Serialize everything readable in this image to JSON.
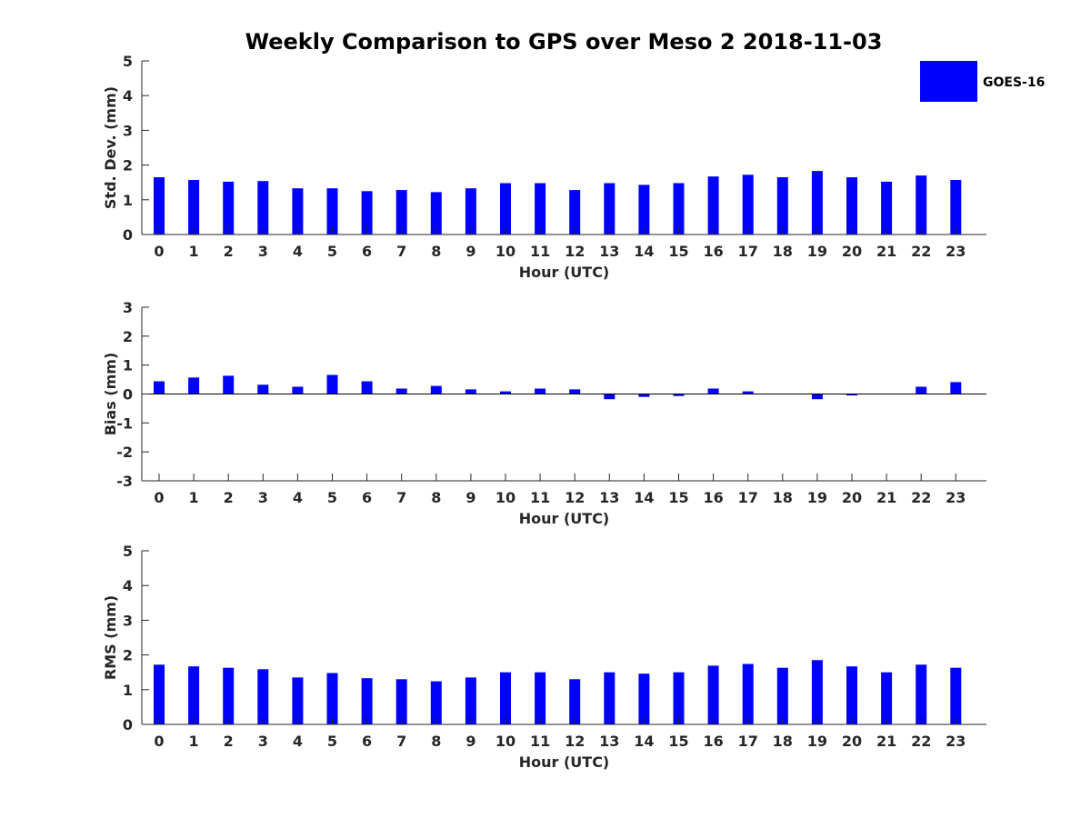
{
  "chart_data": {
    "title": "Weekly Comparison to GPS over Meso 2 2018-11-03",
    "legend": {
      "label": "GOES-16",
      "color": "#0000ff",
      "placement": "top-right"
    },
    "bar_color": "#0000ff",
    "panels": [
      {
        "type": "bar",
        "ylabel": "Std. Dev. (mm)",
        "xlabel": "Hour (UTC)",
        "ylim": [
          0,
          5
        ],
        "yticks": [
          "0",
          "1",
          "2",
          "3",
          "4",
          "5"
        ],
        "categories": [
          "0",
          "1",
          "2",
          "3",
          "4",
          "5",
          "6",
          "7",
          "8",
          "9",
          "10",
          "11",
          "12",
          "13",
          "14",
          "15",
          "16",
          "17",
          "18",
          "19",
          "20",
          "21",
          "22",
          "23"
        ],
        "series": [
          {
            "name": "GOES-16",
            "values": [
              1.65,
              1.57,
              1.52,
              1.54,
              1.33,
              1.33,
              1.25,
              1.28,
              1.22,
              1.33,
              1.48,
              1.48,
              1.28,
              1.48,
              1.43,
              1.48,
              1.67,
              1.72,
              1.65,
              1.83,
              1.65,
              1.52,
              1.7,
              1.57
            ]
          }
        ]
      },
      {
        "type": "bar",
        "ylabel": "Bias (mm)",
        "xlabel": "Hour (UTC)",
        "ylim": [
          -3,
          3
        ],
        "yticks": [
          "-3",
          "-2",
          "-1",
          "0",
          "1",
          "2",
          "3"
        ],
        "categories": [
          "0",
          "1",
          "2",
          "3",
          "4",
          "5",
          "6",
          "7",
          "8",
          "9",
          "10",
          "11",
          "12",
          "13",
          "14",
          "15",
          "16",
          "17",
          "18",
          "19",
          "20",
          "21",
          "22",
          "23"
        ],
        "series": [
          {
            "name": "GOES-16",
            "values": [
              0.44,
              0.57,
              0.63,
              0.32,
              0.25,
              0.66,
              0.44,
              0.19,
              0.28,
              0.16,
              0.09,
              0.19,
              0.16,
              -0.18,
              -0.1,
              -0.07,
              0.19,
              0.09,
              0.0,
              -0.18,
              -0.05,
              0.0,
              0.25,
              0.41
            ]
          }
        ]
      },
      {
        "type": "bar",
        "ylabel": "RMS (mm)",
        "xlabel": "Hour (UTC)",
        "ylim": [
          0,
          5
        ],
        "yticks": [
          "0",
          "1",
          "2",
          "3",
          "4",
          "5"
        ],
        "categories": [
          "0",
          "1",
          "2",
          "3",
          "4",
          "5",
          "6",
          "7",
          "8",
          "9",
          "10",
          "11",
          "12",
          "13",
          "14",
          "15",
          "16",
          "17",
          "18",
          "19",
          "20",
          "21",
          "22",
          "23"
        ],
        "series": [
          {
            "name": "GOES-16",
            "values": [
              1.72,
              1.67,
              1.63,
              1.59,
              1.35,
              1.48,
              1.33,
              1.3,
              1.24,
              1.35,
              1.5,
              1.5,
              1.3,
              1.5,
              1.46,
              1.5,
              1.69,
              1.74,
              1.63,
              1.85,
              1.67,
              1.5,
              1.72,
              1.63
            ]
          }
        ]
      }
    ]
  }
}
